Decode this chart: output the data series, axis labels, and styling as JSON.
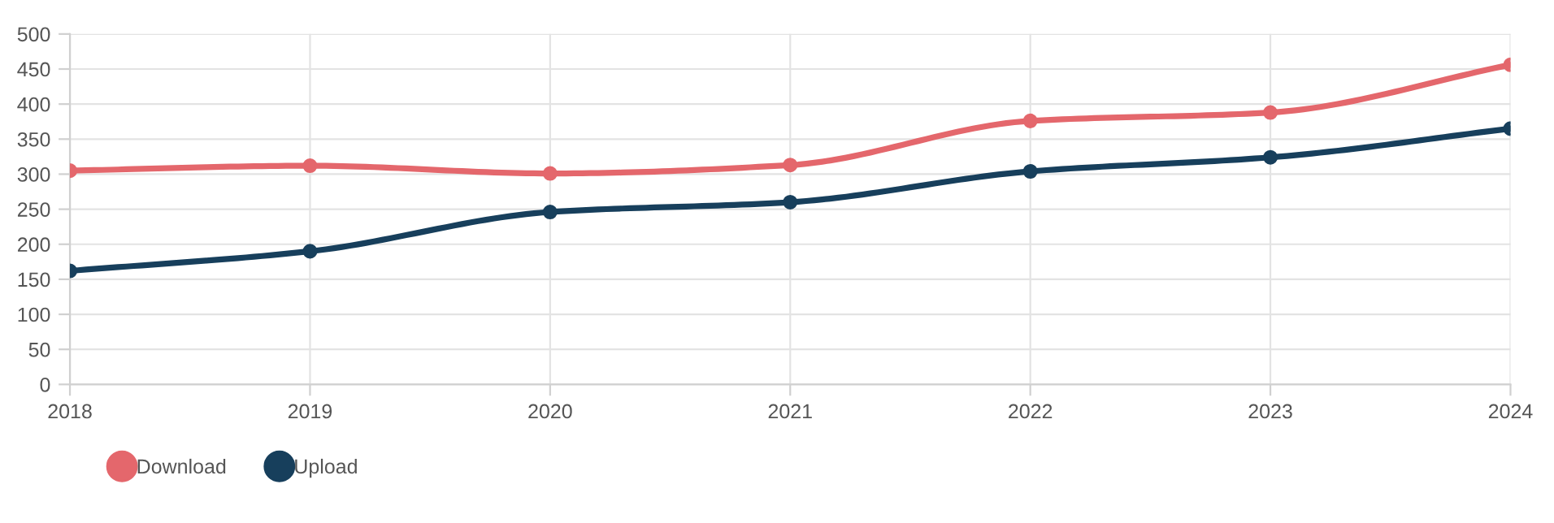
{
  "chart_data": {
    "type": "line",
    "x": [
      2018,
      2019,
      2020,
      2021,
      2022,
      2023,
      2024
    ],
    "series": [
      {
        "name": "Download",
        "color": "#e4676c",
        "values": [
          305,
          312,
          301,
          313,
          376,
          388,
          456
        ]
      },
      {
        "name": "Upload",
        "color": "#173f5c",
        "values": [
          162,
          190,
          246,
          260,
          304,
          324,
          365
        ]
      }
    ],
    "xlim": [
      2018,
      2024
    ],
    "xticks": [
      2018,
      2019,
      2020,
      2021,
      2022,
      2023,
      2024
    ],
    "ylim": [
      0,
      500
    ],
    "yticks": [
      0,
      50,
      100,
      150,
      200,
      250,
      300,
      350,
      400,
      450,
      500
    ],
    "grid": true,
    "legend": "bottom left",
    "marker": "circle",
    "line_style": "solid"
  }
}
